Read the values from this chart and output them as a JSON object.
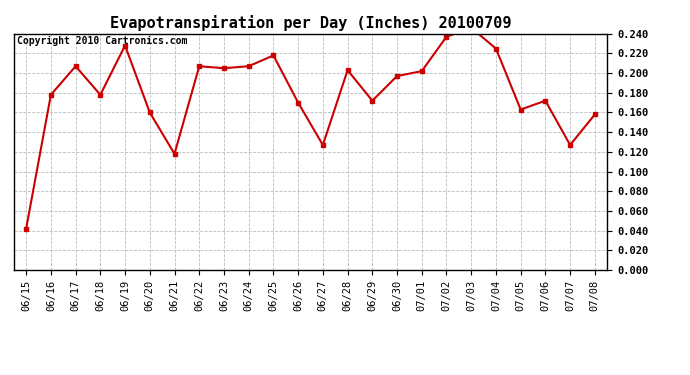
{
  "title": "Evapotranspiration per Day (Inches) 20100709",
  "copyright": "Copyright 2010 Cartronics.com",
  "dates": [
    "06/15",
    "06/16",
    "06/17",
    "06/18",
    "06/19",
    "06/20",
    "06/21",
    "06/22",
    "06/23",
    "06/24",
    "06/25",
    "06/26",
    "06/27",
    "06/28",
    "06/29",
    "06/30",
    "07/01",
    "07/02",
    "07/03",
    "07/04",
    "07/05",
    "07/06",
    "07/07",
    "07/08"
  ],
  "values": [
    0.042,
    0.178,
    0.207,
    0.178,
    0.228,
    0.16,
    0.118,
    0.207,
    0.205,
    0.207,
    0.218,
    0.17,
    0.127,
    0.203,
    0.172,
    0.197,
    0.202,
    0.237,
    0.246,
    0.225,
    0.163,
    0.172,
    0.127,
    0.158
  ],
  "line_color": "#cc0000",
  "marker": "s",
  "marker_size": 3,
  "line_width": 1.5,
  "ylim": [
    0.0,
    0.24
  ],
  "ytick_step": 0.02,
  "background_color": "#ffffff",
  "grid_color": "#bbbbbb",
  "title_fontsize": 11,
  "tick_fontsize": 7.5,
  "copyright_fontsize": 7
}
